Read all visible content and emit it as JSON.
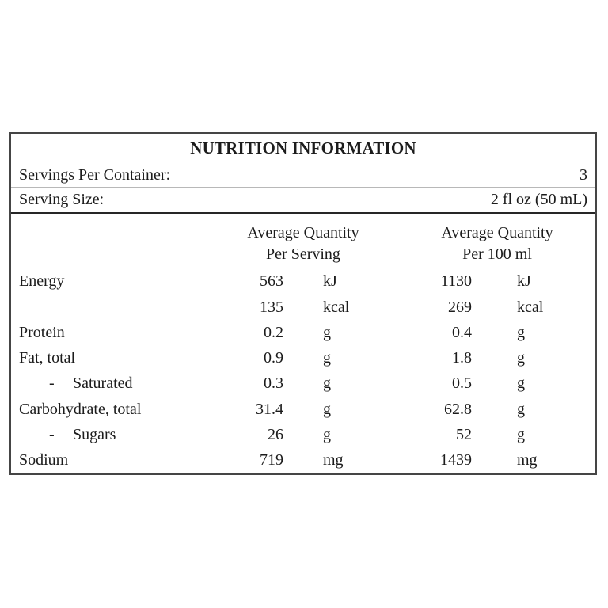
{
  "title": "NUTRITION INFORMATION",
  "info": {
    "servings_label": "Servings Per Container:",
    "servings_value": "3",
    "serving_size_label": "Serving Size:",
    "serving_size_value": "2 fl oz (50 mL)"
  },
  "columns": {
    "per_serving_line1": "Average Quantity",
    "per_serving_line2": "Per Serving",
    "per_100ml_line1": "Average Quantity",
    "per_100ml_line2": "Per 100 ml"
  },
  "rows": [
    {
      "name": "Energy",
      "qty1": "563",
      "unit1": "kJ",
      "qty2": "1130",
      "unit2": "kJ"
    },
    {
      "name": "",
      "qty1": "135",
      "unit1": "kcal",
      "qty2": "269",
      "unit2": "kcal"
    },
    {
      "name": "Protein",
      "qty1": "0.2",
      "unit1": "g",
      "qty2": "0.4",
      "unit2": "g"
    },
    {
      "name": "Fat, total",
      "qty1": "0.9",
      "unit1": "g",
      "qty2": "1.8",
      "unit2": "g"
    },
    {
      "name": "Saturated",
      "dash": "-",
      "qty1": "0.3",
      "unit1": "g",
      "qty2": "0.5",
      "unit2": "g"
    },
    {
      "name": "Carbohydrate, total",
      "qty1": "31.4",
      "unit1": "g",
      "qty2": "62.8",
      "unit2": "g"
    },
    {
      "name": "Sugars",
      "dash": "-",
      "qty1": "26",
      "unit1": "g",
      "qty2": "52",
      "unit2": "g"
    },
    {
      "name": "Sodium",
      "qty1": "719",
      "unit1": "mg",
      "qty2": "1439",
      "unit2": "mg"
    }
  ]
}
